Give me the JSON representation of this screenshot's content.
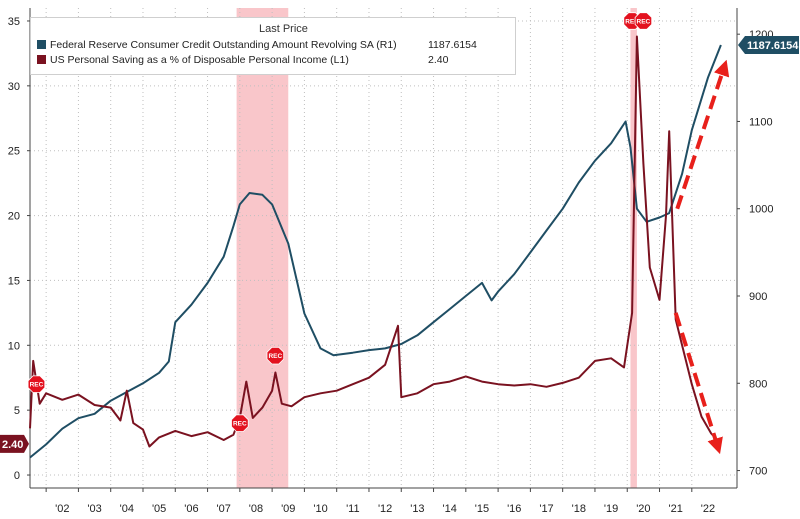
{
  "chart_data": {
    "type": "line",
    "legend": {
      "header": "Last Price",
      "placement": "top-left"
    },
    "series": [
      {
        "name": "Federal Reserve Consumer Credit Outstanding Amount Revolving SA  (R1)",
        "axis": "right",
        "color": "#1f4e64",
        "last_value": "1187.6154",
        "points": [
          [
            2001.5,
            715
          ],
          [
            2002.0,
            730
          ],
          [
            2002.5,
            748
          ],
          [
            2003.0,
            760
          ],
          [
            2003.5,
            765
          ],
          [
            2004.0,
            780
          ],
          [
            2004.5,
            790
          ],
          [
            2005.0,
            800
          ],
          [
            2005.5,
            812
          ],
          [
            2005.8,
            825
          ],
          [
            2006.0,
            870
          ],
          [
            2006.5,
            890
          ],
          [
            2007.0,
            915
          ],
          [
            2007.5,
            945
          ],
          [
            2007.8,
            980
          ],
          [
            2008.0,
            1005
          ],
          [
            2008.3,
            1018
          ],
          [
            2008.7,
            1016
          ],
          [
            2009.0,
            1005
          ],
          [
            2009.5,
            960
          ],
          [
            2010.0,
            880
          ],
          [
            2010.5,
            840
          ],
          [
            2010.9,
            832
          ],
          [
            2011.5,
            835
          ],
          [
            2012.0,
            838
          ],
          [
            2012.5,
            840
          ],
          [
            2013.0,
            845
          ],
          [
            2013.5,
            855
          ],
          [
            2014.0,
            870
          ],
          [
            2014.5,
            885
          ],
          [
            2015.0,
            900
          ],
          [
            2015.5,
            915
          ],
          [
            2015.8,
            895
          ],
          [
            2016.0,
            905
          ],
          [
            2016.5,
            925
          ],
          [
            2017.0,
            950
          ],
          [
            2017.5,
            975
          ],
          [
            2018.0,
            1000
          ],
          [
            2018.5,
            1030
          ],
          [
            2019.0,
            1055
          ],
          [
            2019.5,
            1075
          ],
          [
            2019.95,
            1100
          ],
          [
            2020.1,
            1070
          ],
          [
            2020.3,
            1000
          ],
          [
            2020.6,
            985
          ],
          [
            2021.0,
            990
          ],
          [
            2021.3,
            995
          ],
          [
            2021.7,
            1040
          ],
          [
            2022.0,
            1090
          ],
          [
            2022.5,
            1150
          ],
          [
            2022.9,
            1187.6154
          ]
        ]
      },
      {
        "name": "US Personal Saving as a % of Disposable Personal Income  (L1)",
        "axis": "left",
        "color": "#7a1220",
        "last_value": "2.40",
        "points": [
          [
            2001.5,
            3.6
          ],
          [
            2001.6,
            8.8
          ],
          [
            2001.8,
            5.5
          ],
          [
            2002.0,
            6.3
          ],
          [
            2002.5,
            5.8
          ],
          [
            2003.0,
            6.2
          ],
          [
            2003.5,
            5.4
          ],
          [
            2004.0,
            5.2
          ],
          [
            2004.3,
            4.2
          ],
          [
            2004.5,
            6.5
          ],
          [
            2004.7,
            4.0
          ],
          [
            2005.0,
            3.5
          ],
          [
            2005.2,
            2.2
          ],
          [
            2005.5,
            2.9
          ],
          [
            2006.0,
            3.4
          ],
          [
            2006.5,
            3.0
          ],
          [
            2007.0,
            3.3
          ],
          [
            2007.5,
            2.7
          ],
          [
            2007.8,
            3.1
          ],
          [
            2008.0,
            4.4
          ],
          [
            2008.2,
            7.2
          ],
          [
            2008.4,
            4.4
          ],
          [
            2008.7,
            5.2
          ],
          [
            2009.0,
            6.5
          ],
          [
            2009.1,
            7.9
          ],
          [
            2009.3,
            5.5
          ],
          [
            2009.6,
            5.3
          ],
          [
            2010.0,
            6.0
          ],
          [
            2010.5,
            6.3
          ],
          [
            2011.0,
            6.5
          ],
          [
            2011.5,
            7.0
          ],
          [
            2012.0,
            7.5
          ],
          [
            2012.5,
            8.5
          ],
          [
            2012.9,
            11.5
          ],
          [
            2013.0,
            6.0
          ],
          [
            2013.5,
            6.3
          ],
          [
            2014.0,
            7.0
          ],
          [
            2014.5,
            7.2
          ],
          [
            2015.0,
            7.6
          ],
          [
            2015.5,
            7.2
          ],
          [
            2016.0,
            7.0
          ],
          [
            2016.5,
            6.9
          ],
          [
            2017.0,
            7.0
          ],
          [
            2017.5,
            6.8
          ],
          [
            2018.0,
            7.1
          ],
          [
            2018.5,
            7.5
          ],
          [
            2019.0,
            8.8
          ],
          [
            2019.5,
            9.0
          ],
          [
            2019.9,
            8.3
          ],
          [
            2020.15,
            12.5
          ],
          [
            2020.3,
            33.8
          ],
          [
            2020.5,
            24.0
          ],
          [
            2020.7,
            16.0
          ],
          [
            2021.0,
            13.5
          ],
          [
            2021.2,
            20.0
          ],
          [
            2021.3,
            26.5
          ],
          [
            2021.5,
            12.0
          ],
          [
            2021.7,
            10.0
          ],
          [
            2022.0,
            7.0
          ],
          [
            2022.3,
            4.5
          ],
          [
            2022.6,
            3.2
          ],
          [
            2022.9,
            2.4
          ]
        ]
      }
    ],
    "x": {
      "range": [
        2001.5,
        2023.4
      ],
      "ticks": [
        "'02",
        "'03",
        "'04",
        "'05",
        "'06",
        "'07",
        "'08",
        "'09",
        "'10",
        "'11",
        "'12",
        "'13",
        "'14",
        "'15",
        "'16",
        "'17",
        "'18",
        "'19",
        "'20",
        "'21",
        "'22"
      ]
    },
    "y_left": {
      "range": [
        -1,
        36
      ],
      "ticks": [
        "0",
        "5",
        "10",
        "15",
        "20",
        "25",
        "30",
        "35"
      ]
    },
    "y_right": {
      "range": [
        680,
        1230
      ],
      "ticks": [
        "700",
        "800",
        "900",
        "1000",
        "1100",
        "1200"
      ]
    },
    "recessions": [
      [
        2007.9,
        2009.5
      ],
      [
        2020.1,
        2020.3
      ]
    ],
    "recession_markers": [
      {
        "label": "REC",
        "x": 2001.7,
        "y": 7.0
      },
      {
        "label": "REC",
        "x": 2008.0,
        "y": 4.0
      },
      {
        "label": "REC",
        "x": 2009.1,
        "y": 9.2
      },
      {
        "label": "REC",
        "x": 2020.15,
        "y": 35.0
      },
      {
        "label": "REC",
        "x": 2020.5,
        "y": 35.0
      }
    ],
    "arrows": [
      {
        "name": "up-trend-arrow",
        "from": [
          2021.55,
          1000
        ],
        "to": [
          2023.0,
          1162
        ],
        "axis": "right"
      },
      {
        "name": "down-trend-arrow",
        "from": [
          2021.5,
          12.5
        ],
        "to": [
          2022.8,
          2.2
        ],
        "axis": "left"
      }
    ],
    "grid": "dotted"
  }
}
